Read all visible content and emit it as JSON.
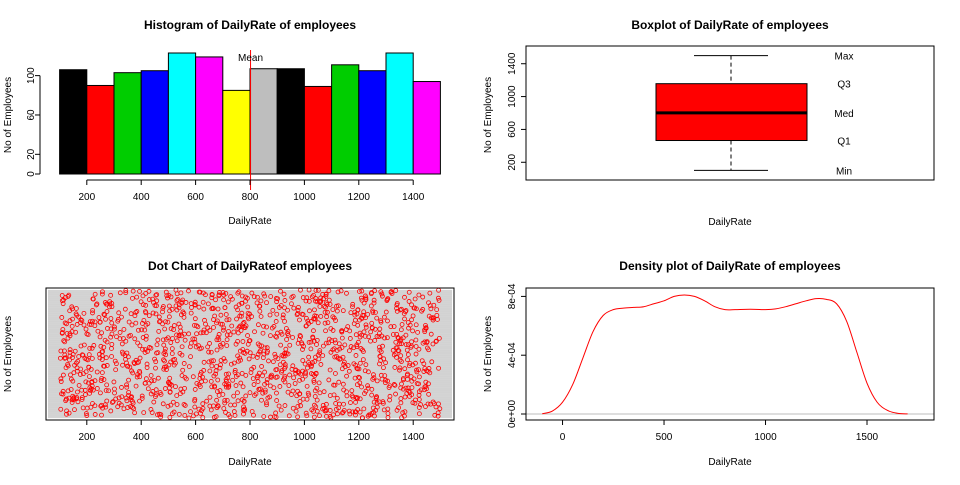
{
  "chart_data": [
    {
      "type": "bar",
      "title": "Histogram of DailyRate of employees",
      "xlabel": "DailyRate",
      "ylabel": "No of Employees",
      "bin_edges": [
        100,
        200,
        300,
        400,
        500,
        600,
        700,
        800,
        900,
        1000,
        1100,
        1200,
        1300,
        1400,
        1500
      ],
      "values": [
        106,
        90,
        103,
        105,
        123,
        119,
        85,
        107,
        107,
        89,
        111,
        105,
        123,
        94
      ],
      "colors": [
        "#000000",
        "#ff0000",
        "#00cd00",
        "#0000ff",
        "#00ffff",
        "#ff00ff",
        "#ffff00",
        "#bebebe",
        "#000000",
        "#ff0000",
        "#00cd00",
        "#0000ff",
        "#00ffff",
        "#ff00ff"
      ],
      "xticks": [
        "200",
        "400",
        "600",
        "800",
        "1000",
        "1200",
        "1400"
      ],
      "yticks": [
        "0",
        "20",
        "60",
        "100"
      ],
      "xlim": [
        50,
        1550
      ],
      "ylim": [
        0,
        123
      ],
      "mean": 802,
      "mean_label": "Mean",
      "mean_color": "#ff0000"
    },
    {
      "type": "box",
      "title": "Boxplot of DailyRate of employees",
      "xlabel": "DailyRate",
      "ylabel": "No of Employees",
      "stats": {
        "min": 102,
        "q1": 465,
        "median": 802,
        "q3": 1157,
        "max": 1499
      },
      "stat_labels": {
        "max": "Max",
        "q3": "Q3",
        "median": "Med",
        "q1": "Q1",
        "min": "Min"
      },
      "yticks": [
        "200",
        "600",
        "1000",
        "1400"
      ],
      "ylim": [
        45,
        1555
      ],
      "box_color": "#ff0000"
    },
    {
      "type": "scatter",
      "title": "Dot Chart of DailyRateof employees",
      "xlabel": "DailyRate",
      "ylabel": "No of Employees",
      "xticks": [
        "200",
        "400",
        "600",
        "800",
        "1000",
        "1200",
        "1400"
      ],
      "xlim": [
        50,
        1550
      ],
      "point_count": 1470,
      "x_range": [
        102,
        1499
      ],
      "point_color": "#ff0000",
      "line_color": "#bebebe"
    },
    {
      "type": "line",
      "title": "Density plot of DailyRate of employees",
      "xlabel": "DailyRate",
      "ylabel": "No of Employees",
      "x": [
        -100,
        -50,
        0,
        50,
        100,
        150,
        200,
        250,
        300,
        350,
        400,
        450,
        500,
        550,
        600,
        650,
        700,
        750,
        800,
        850,
        900,
        950,
        1000,
        1050,
        1100,
        1150,
        1200,
        1250,
        1300,
        1350,
        1400,
        1450,
        1500,
        1550,
        1600,
        1650,
        1700
      ],
      "y": [
        2e-06,
        2e-05,
        8e-05,
        0.0002,
        0.00038,
        0.00056,
        0.00067,
        0.00071,
        0.00072,
        0.000725,
        0.00073,
        0.00075,
        0.00077,
        0.0008,
        0.00081,
        0.0008,
        0.00077,
        0.00073,
        0.00071,
        0.00071,
        0.000712,
        0.000712,
        0.00071,
        0.000715,
        0.00073,
        0.00075,
        0.00077,
        0.000785,
        0.00078,
        0.00075,
        0.00063,
        0.00042,
        0.00021,
        8e-05,
        2.5e-05,
        5e-06,
        5e-07
      ],
      "xticks": [
        "0",
        "500",
        "1000",
        "1500"
      ],
      "yticks": [
        "0e+00",
        "4e-04",
        "8e-04"
      ],
      "xlim": [
        -180,
        1830
      ],
      "ylim": [
        0,
        0.00083
      ],
      "line_color": "#ff0000",
      "baseline_color": "#bebebe"
    }
  ]
}
